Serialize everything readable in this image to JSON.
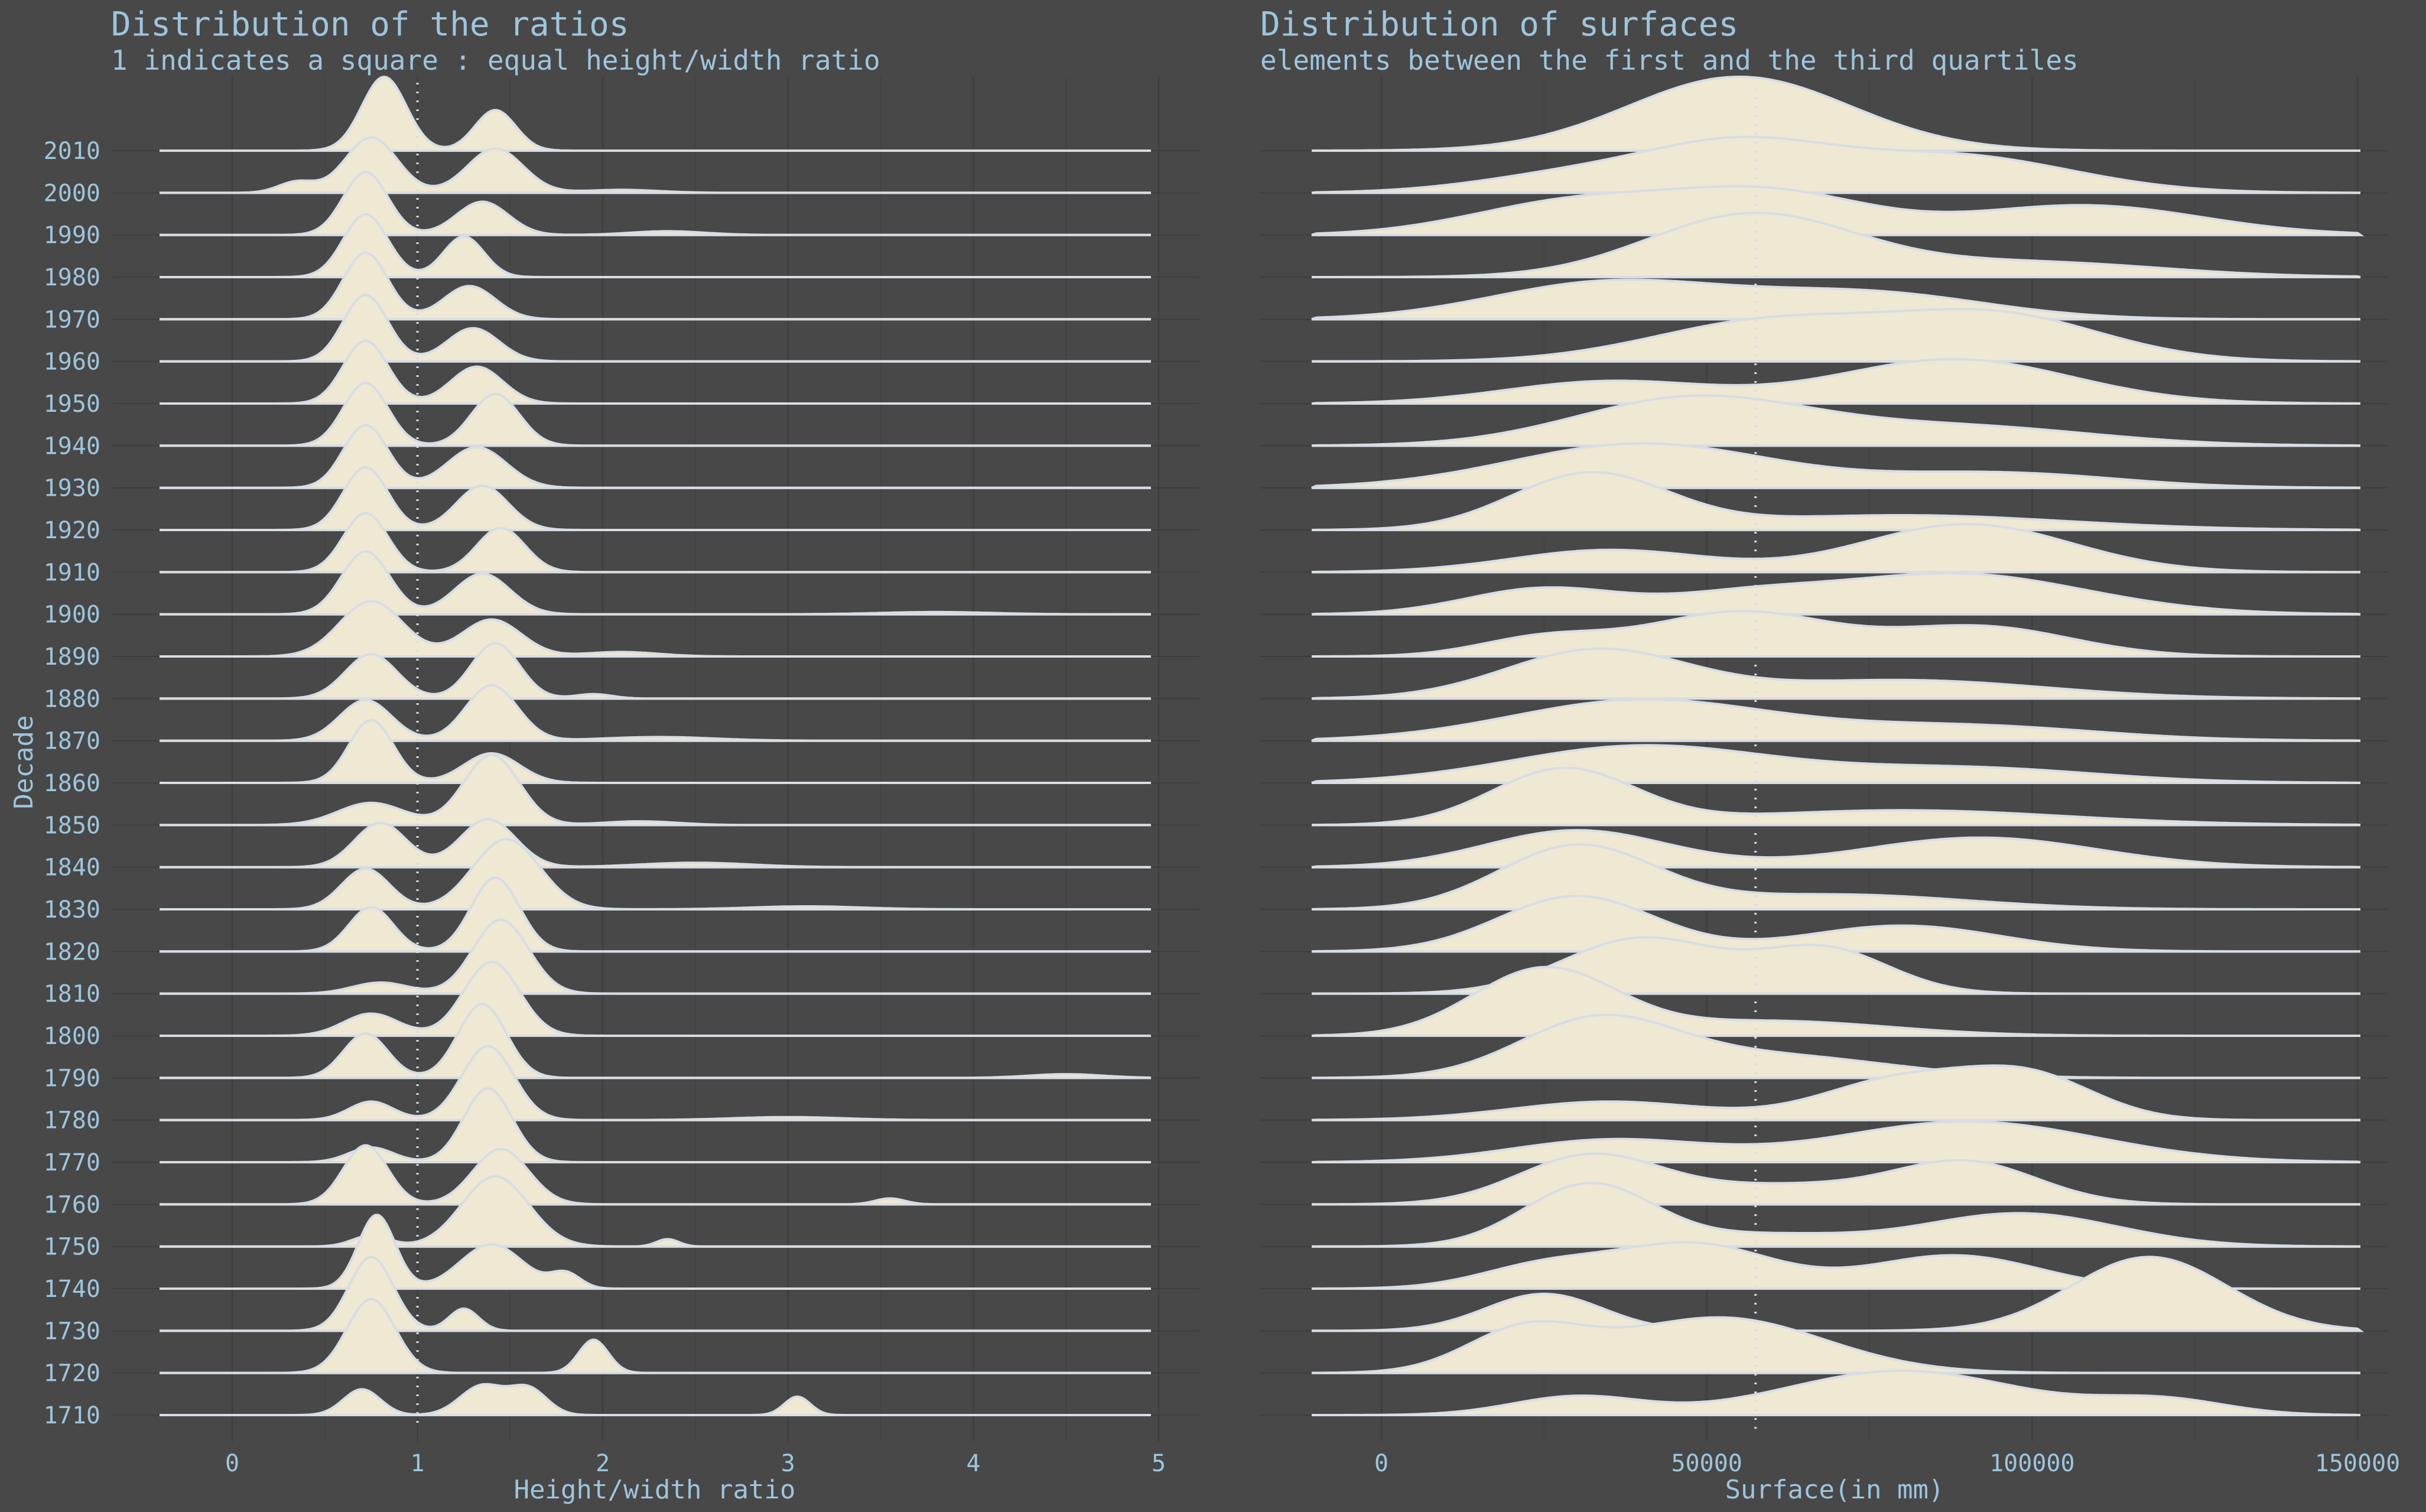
{
  "y_axis": {
    "title": "Decade",
    "categories": [
      "1710",
      "1720",
      "1730",
      "1740",
      "1750",
      "1760",
      "1770",
      "1780",
      "1790",
      "1800",
      "1810",
      "1820",
      "1830",
      "1840",
      "1850",
      "1860",
      "1870",
      "1880",
      "1890",
      "1900",
      "1910",
      "1920",
      "1930",
      "1940",
      "1950",
      "1960",
      "1970",
      "1980",
      "1990",
      "2000",
      "2010"
    ]
  },
  "fill_color": "#efe8d3",
  "line_color": "#d8dde3",
  "background_color": "#484848",
  "text_color": "#9ec5dd",
  "chart_data": [
    {
      "type": "ridgeline",
      "title": "Distribution of the ratios",
      "subtitle": "1 indicates a square : equal height/width ratio",
      "xlabel": "Height/width ratio",
      "ylabel": "Decade",
      "xlim": [
        -0.4,
        4.95
      ],
      "xticks": [
        "0",
        "1",
        "2",
        "3",
        "4",
        "5"
      ],
      "reference_line": 1,
      "grid": true,
      "series": [
        {
          "decade": "1710",
          "peaks": [
            [
              0.7,
              0.35,
              0.1
            ],
            [
              1.35,
              0.4,
              0.12
            ],
            [
              1.6,
              0.35,
              0.1
            ],
            [
              3.05,
              0.25,
              0.07
            ]
          ]
        },
        {
          "decade": "1720",
          "peaks": [
            [
              0.75,
              1.0,
              0.13
            ],
            [
              1.95,
              0.45,
              0.08
            ]
          ]
        },
        {
          "decade": "1730",
          "peaks": [
            [
              0.75,
              1.0,
              0.12
            ],
            [
              1.25,
              0.3,
              0.08
            ]
          ]
        },
        {
          "decade": "1740",
          "peaks": [
            [
              0.78,
              1.0,
              0.1
            ],
            [
              1.4,
              0.6,
              0.17
            ],
            [
              1.8,
              0.2,
              0.08
            ]
          ]
        },
        {
          "decade": "1750",
          "peaks": [
            [
              0.75,
              0.15,
              0.1
            ],
            [
              1.42,
              0.95,
              0.18
            ],
            [
              2.35,
              0.1,
              0.06
            ]
          ]
        },
        {
          "decade": "1760",
          "peaks": [
            [
              0.72,
              0.8,
              0.12
            ],
            [
              1.45,
              0.75,
              0.15
            ],
            [
              3.55,
              0.08,
              0.08
            ]
          ]
        },
        {
          "decade": "1770",
          "peaks": [
            [
              0.75,
              0.2,
              0.12
            ],
            [
              1.38,
              1.0,
              0.13
            ]
          ]
        },
        {
          "decade": "1780",
          "peaks": [
            [
              0.75,
              0.25,
              0.12
            ],
            [
              1.38,
              1.0,
              0.14
            ],
            [
              3.0,
              0.04,
              0.3
            ]
          ]
        },
        {
          "decade": "1790",
          "peaks": [
            [
              0.72,
              0.6,
              0.12
            ],
            [
              1.35,
              1.0,
              0.13
            ],
            [
              4.5,
              0.05,
              0.2
            ]
          ]
        },
        {
          "decade": "1800",
          "peaks": [
            [
              0.75,
              0.3,
              0.15
            ],
            [
              1.4,
              1.0,
              0.15
            ]
          ]
        },
        {
          "decade": "1810",
          "peaks": [
            [
              0.8,
              0.15,
              0.15
            ],
            [
              1.45,
              1.0,
              0.15
            ]
          ]
        },
        {
          "decade": "1820",
          "peaks": [
            [
              0.75,
              0.6,
              0.12
            ],
            [
              1.42,
              1.0,
              0.13
            ]
          ]
        },
        {
          "decade": "1830",
          "peaks": [
            [
              0.72,
              0.55,
              0.13
            ],
            [
              1.48,
              0.95,
              0.18
            ],
            [
              3.1,
              0.04,
              0.3
            ]
          ]
        },
        {
          "decade": "1840",
          "peaks": [
            [
              0.8,
              0.6,
              0.14
            ],
            [
              1.38,
              0.65,
              0.15
            ],
            [
              2.5,
              0.06,
              0.3
            ]
          ]
        },
        {
          "decade": "1850",
          "peaks": [
            [
              0.75,
              0.3,
              0.18
            ],
            [
              1.4,
              0.95,
              0.15
            ],
            [
              2.2,
              0.05,
              0.2
            ]
          ]
        },
        {
          "decade": "1860",
          "peaks": [
            [
              0.75,
              0.85,
              0.12
            ],
            [
              1.4,
              0.4,
              0.15
            ]
          ]
        },
        {
          "decade": "1870",
          "peaks": [
            [
              0.72,
              0.55,
              0.14
            ],
            [
              1.4,
              0.75,
              0.14
            ],
            [
              2.3,
              0.05,
              0.3
            ]
          ]
        },
        {
          "decade": "1880",
          "peaks": [
            [
              0.75,
              0.6,
              0.14
            ],
            [
              1.42,
              0.75,
              0.13
            ],
            [
              1.95,
              0.06,
              0.1
            ]
          ]
        },
        {
          "decade": "1890",
          "peaks": [
            [
              0.75,
              0.75,
              0.17
            ],
            [
              1.4,
              0.5,
              0.16
            ],
            [
              2.1,
              0.06,
              0.2
            ]
          ]
        },
        {
          "decade": "1900",
          "peaks": [
            [
              0.72,
              0.85,
              0.13
            ],
            [
              1.35,
              0.55,
              0.15
            ],
            [
              3.8,
              0.03,
              0.3
            ]
          ]
        },
        {
          "decade": "1910",
          "peaks": [
            [
              0.72,
              0.8,
              0.12
            ],
            [
              1.45,
              0.6,
              0.13
            ]
          ]
        },
        {
          "decade": "1920",
          "peaks": [
            [
              0.72,
              0.85,
              0.12
            ],
            [
              1.35,
              0.6,
              0.14
            ]
          ]
        },
        {
          "decade": "1930",
          "peaks": [
            [
              0.72,
              0.85,
              0.12
            ],
            [
              1.32,
              0.55,
              0.16
            ]
          ]
        },
        {
          "decade": "1940",
          "peaks": [
            [
              0.72,
              0.85,
              0.12
            ],
            [
              1.42,
              0.7,
              0.13
            ]
          ]
        },
        {
          "decade": "1950",
          "peaks": [
            [
              0.72,
              0.85,
              0.12
            ],
            [
              1.32,
              0.5,
              0.14
            ]
          ]
        },
        {
          "decade": "1960",
          "peaks": [
            [
              0.72,
              0.9,
              0.12
            ],
            [
              1.3,
              0.45,
              0.14
            ]
          ]
        },
        {
          "decade": "1970",
          "peaks": [
            [
              0.72,
              0.9,
              0.12
            ],
            [
              1.28,
              0.45,
              0.14
            ]
          ]
        },
        {
          "decade": "1980",
          "peaks": [
            [
              0.72,
              0.85,
              0.12
            ],
            [
              1.25,
              0.55,
              0.11
            ]
          ]
        },
        {
          "decade": "1990",
          "peaks": [
            [
              0.72,
              0.85,
              0.12
            ],
            [
              1.35,
              0.45,
              0.14
            ],
            [
              2.35,
              0.05,
              0.2
            ]
          ]
        },
        {
          "decade": "2000",
          "peaks": [
            [
              0.35,
              0.15,
              0.1
            ],
            [
              0.75,
              0.75,
              0.14
            ],
            [
              1.42,
              0.6,
              0.15
            ],
            [
              2.1,
              0.04,
              0.2
            ]
          ]
        },
        {
          "decade": "2010",
          "peaks": [
            [
              0.82,
              1.0,
              0.12
            ],
            [
              1.42,
              0.55,
              0.11
            ]
          ]
        }
      ]
    },
    {
      "type": "ridgeline",
      "title": "Distribution of surfaces",
      "subtitle": "elements between the first and the third quartiles",
      "xlabel": "Surface(in mm)",
      "ylabel": "",
      "xlim": [
        -10000,
        150000
      ],
      "xticks": [
        "0",
        "50000",
        "100000",
        "150000"
      ],
      "reference_line": 57500,
      "grid": true,
      "series": [
        {
          "decade": "1710",
          "peaks": [
            [
              30000,
              0.25,
              10000
            ],
            [
              80000,
              0.6,
              18000
            ],
            [
              120000,
              0.2,
              10000
            ]
          ]
        },
        {
          "decade": "1720",
          "peaks": [
            [
              22000,
              0.55,
              9000
            ],
            [
              52000,
              0.75,
              16000
            ]
          ]
        },
        {
          "decade": "1730",
          "peaks": [
            [
              25000,
              0.5,
              9000
            ],
            [
              118000,
              1.0,
              12000
            ]
          ]
        },
        {
          "decade": "1740",
          "peaks": [
            [
              25000,
              0.3,
              10000
            ],
            [
              48000,
              0.6,
              12000
            ],
            [
              88000,
              0.45,
              13000
            ]
          ]
        },
        {
          "decade": "1750",
          "peaks": [
            [
              32000,
              0.85,
              10000
            ],
            [
              60000,
              0.15,
              12000
            ],
            [
              98000,
              0.45,
              15000
            ]
          ]
        },
        {
          "decade": "1760",
          "peaks": [
            [
              32000,
              0.65,
              11000
            ],
            [
              62000,
              0.25,
              15000
            ],
            [
              90000,
              0.55,
              11000
            ]
          ]
        },
        {
          "decade": "1770",
          "peaks": [
            [
              35000,
              0.3,
              15000
            ],
            [
              90000,
              0.55,
              20000
            ]
          ]
        },
        {
          "decade": "1780",
          "peaks": [
            [
              35000,
              0.25,
              15000
            ],
            [
              80000,
              0.55,
              12000
            ],
            [
              100000,
              0.55,
              10000
            ]
          ]
        },
        {
          "decade": "1790",
          "peaks": [
            [
              33000,
              0.75,
              12000
            ],
            [
              60000,
              0.3,
              18000
            ]
          ]
        },
        {
          "decade": "1800",
          "peaks": [
            [
              25000,
              0.9,
              11000
            ],
            [
              60000,
              0.2,
              18000
            ]
          ]
        },
        {
          "decade": "1810",
          "peaks": [
            [
              40000,
              0.75,
              12000
            ],
            [
              68000,
              0.6,
              10000
            ]
          ]
        },
        {
          "decade": "1820",
          "peaks": [
            [
              30000,
              0.75,
              12000
            ],
            [
              80000,
              0.35,
              15000
            ]
          ]
        },
        {
          "decade": "1830",
          "peaks": [
            [
              30000,
              0.85,
              12000
            ],
            [
              70000,
              0.2,
              20000
            ]
          ]
        },
        {
          "decade": "1840",
          "peaks": [
            [
              30000,
              0.5,
              14000
            ],
            [
              92000,
              0.4,
              18000
            ]
          ]
        },
        {
          "decade": "1850",
          "peaks": [
            [
              28000,
              0.75,
              11000
            ],
            [
              80000,
              0.2,
              25000
            ]
          ]
        },
        {
          "decade": "1860",
          "peaks": [
            [
              40000,
              0.5,
              20000
            ],
            [
              90000,
              0.2,
              20000
            ]
          ]
        },
        {
          "decade": "1870",
          "peaks": [
            [
              40000,
              0.55,
              20000
            ],
            [
              90000,
              0.2,
              20000
            ]
          ]
        },
        {
          "decade": "1880",
          "peaks": [
            [
              33000,
              0.65,
              14000
            ],
            [
              80000,
              0.25,
              22000
            ]
          ]
        },
        {
          "decade": "1890",
          "peaks": [
            [
              25000,
              0.25,
              10000
            ],
            [
              55000,
              0.6,
              14000
            ],
            [
              92000,
              0.4,
              14000
            ]
          ]
        },
        {
          "decade": "1900",
          "peaks": [
            [
              25000,
              0.35,
              12000
            ],
            [
              55000,
              0.2,
              12000
            ],
            [
              88000,
              0.55,
              20000
            ]
          ]
        },
        {
          "decade": "1910",
          "peaks": [
            [
              35000,
              0.3,
              15000
            ],
            [
              90000,
              0.65,
              16000
            ]
          ]
        },
        {
          "decade": "1920",
          "peaks": [
            [
              32000,
              0.75,
              12000
            ],
            [
              80000,
              0.2,
              25000
            ]
          ]
        },
        {
          "decade": "1930",
          "peaks": [
            [
              40000,
              0.6,
              20000
            ],
            [
              95000,
              0.2,
              18000
            ]
          ]
        },
        {
          "decade": "1940",
          "peaks": [
            [
              48000,
              0.65,
              18000
            ],
            [
              90000,
              0.25,
              20000
            ]
          ]
        },
        {
          "decade": "1950",
          "peaks": [
            [
              35000,
              0.3,
              16000
            ],
            [
              88000,
              0.6,
              18000
            ]
          ]
        },
        {
          "decade": "1960",
          "peaks": [
            [
              60000,
              0.55,
              18000
            ],
            [
              95000,
              0.6,
              16000
            ]
          ]
        },
        {
          "decade": "1970",
          "peaks": [
            [
              35000,
              0.5,
              18000
            ],
            [
              75000,
              0.35,
              18000
            ]
          ]
        },
        {
          "decade": "1980",
          "peaks": [
            [
              57000,
              0.85,
              16000
            ],
            [
              100000,
              0.2,
              20000
            ]
          ]
        },
        {
          "decade": "1990",
          "peaks": [
            [
              30000,
              0.45,
              16000
            ],
            [
              60000,
              0.55,
              15000
            ],
            [
              108000,
              0.4,
              18000
            ]
          ]
        },
        {
          "decade": "2000",
          "peaks": [
            [
              30000,
              0.25,
              15000
            ],
            [
              55000,
              0.6,
              14000
            ],
            [
              88000,
              0.5,
              18000
            ]
          ]
        },
        {
          "decade": "2010",
          "peaks": [
            [
              55000,
              1.0,
              17000
            ]
          ]
        }
      ]
    }
  ]
}
